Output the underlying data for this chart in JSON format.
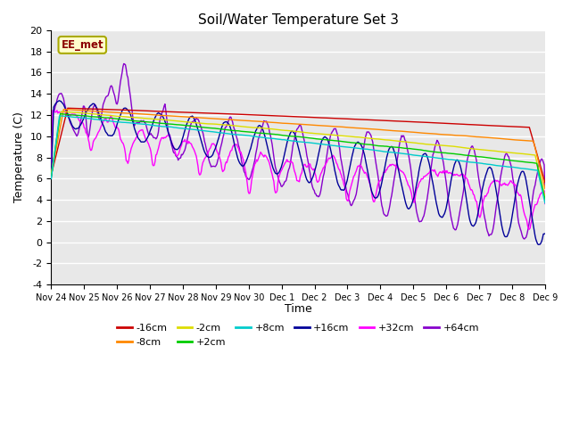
{
  "title": "Soil/Water Temperature Set 3",
  "ylabel": "Temperature (C)",
  "xlabel": "Time",
  "annotation": "EE_met",
  "ylim": [
    -4,
    20
  ],
  "yticks": [
    -4,
    -2,
    0,
    2,
    4,
    6,
    8,
    10,
    12,
    14,
    16,
    18,
    20
  ],
  "legend_row1": [
    {
      "label": "-16cm",
      "color": "#cc0000"
    },
    {
      "label": "-8cm",
      "color": "#ff8800"
    },
    {
      "label": "-2cm",
      "color": "#dddd00"
    },
    {
      "label": "+2cm",
      "color": "#00cc00"
    },
    {
      "label": "+8cm",
      "color": "#00cccc"
    },
    {
      "label": "+16cm",
      "color": "#000099"
    }
  ],
  "legend_row2": [
    {
      "label": "+32cm",
      "color": "#ff00ff"
    },
    {
      "label": "+64cm",
      "color": "#8800cc"
    }
  ],
  "xtick_labels": [
    "Nov 24",
    "Nov 25",
    "Nov 26",
    "Nov 27",
    "Nov 28",
    "Nov 29",
    "Nov 30",
    "Dec 1",
    "Dec 2",
    "Dec 3",
    "Dec 4",
    "Dec 5",
    "Dec 6",
    "Dec 7",
    "Dec 8",
    "Dec 9"
  ],
  "n_points": 600
}
